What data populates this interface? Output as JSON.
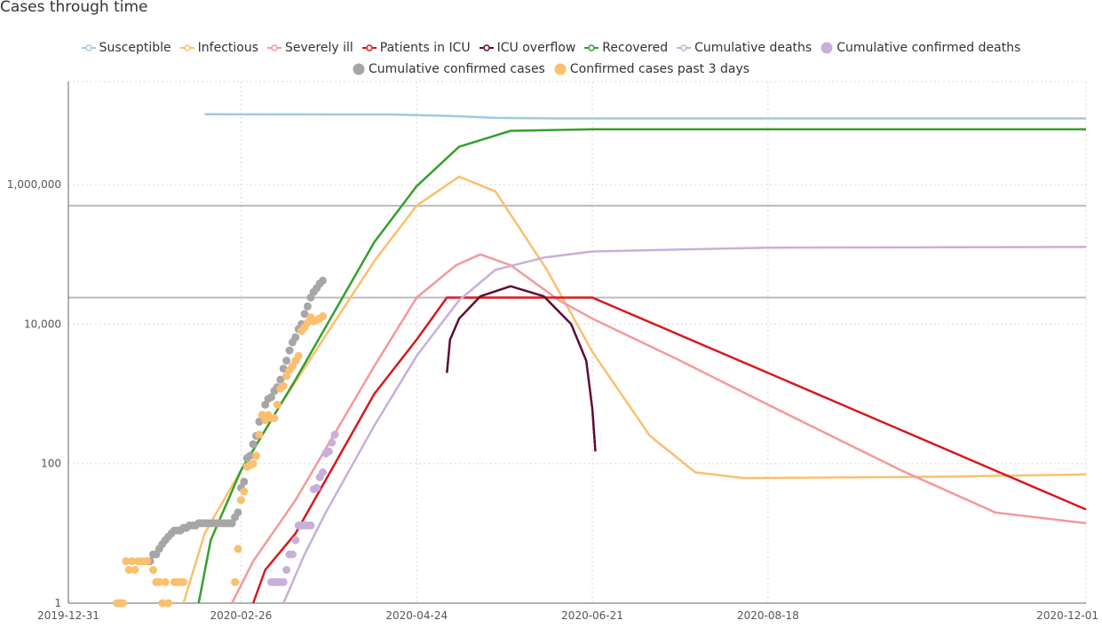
{
  "chart_data": {
    "type": "line",
    "title": "Cases through time",
    "y_scale": "log",
    "ylim": [
      1,
      30000000
    ],
    "xlim": [
      "2019-12-31",
      "2020-12-01"
    ],
    "y_ticks": [
      {
        "value": 1,
        "label": "1"
      },
      {
        "value": 100,
        "label": "100"
      },
      {
        "value": 10000,
        "label": "10,000"
      },
      {
        "value": 1000000,
        "label": "1,000,000"
      }
    ],
    "x_ticks": [
      {
        "value": "2019-12-31",
        "label": "2019-12-31"
      },
      {
        "value": "2020-02-26",
        "label": "2020-02-26"
      },
      {
        "value": "2020-04-24",
        "label": "2020-04-24"
      },
      {
        "value": "2020-06-21",
        "label": "2020-06-21"
      },
      {
        "value": "2020-08-18",
        "label": "2020-08-18"
      },
      {
        "value": "2020-12-01",
        "label": "2020-12-01"
      }
    ],
    "grid": true,
    "legend_position": "top",
    "reference_lines": [
      {
        "value": 500000,
        "color": "#bbbbbb"
      },
      {
        "value": 24000,
        "color": "#bbbbbb"
      }
    ],
    "series": [
      {
        "name": "Susceptible",
        "kind": "line",
        "color": "#9ecae1",
        "points": [
          [
            "2020-02-14",
            10200000
          ],
          [
            "2020-04-15",
            10150000
          ],
          [
            "2020-05-04",
            9700000
          ],
          [
            "2020-05-20",
            9050000
          ],
          [
            "2020-06-10",
            8900000
          ],
          [
            "2020-12-01",
            8900000
          ]
        ]
      },
      {
        "name": "Infectious",
        "kind": "line",
        "color": "#fbbf6e",
        "points": [
          [
            "2020-02-07",
            1
          ],
          [
            "2020-02-14",
            10
          ],
          [
            "2020-02-26",
            80
          ],
          [
            "2020-03-10",
            700
          ],
          [
            "2020-04-10",
            80000
          ],
          [
            "2020-04-24",
            500000
          ],
          [
            "2020-05-08",
            1300000
          ],
          [
            "2020-05-20",
            800000
          ],
          [
            "2020-06-06",
            60000
          ],
          [
            "2020-06-21",
            4000
          ],
          [
            "2020-07-10",
            250
          ],
          [
            "2020-07-25",
            75
          ],
          [
            "2020-08-10",
            62
          ],
          [
            "2020-09-01",
            63
          ],
          [
            "2020-10-15",
            65
          ],
          [
            "2020-12-01",
            70
          ]
        ]
      },
      {
        "name": "Severely ill",
        "kind": "line",
        "color": "#f4999a",
        "points": [
          [
            "2020-02-23",
            1
          ],
          [
            "2020-03-01",
            4
          ],
          [
            "2020-03-15",
            30
          ],
          [
            "2020-04-10",
            2500
          ],
          [
            "2020-04-24",
            24000
          ],
          [
            "2020-05-07",
            70000
          ],
          [
            "2020-05-15",
            100000
          ],
          [
            "2020-05-25",
            70000
          ],
          [
            "2020-06-10",
            22000
          ],
          [
            "2020-06-21",
            12000
          ],
          [
            "2020-07-20",
            3000
          ],
          [
            "2020-08-18",
            700
          ],
          [
            "2020-10-01",
            80
          ],
          [
            "2020-11-01",
            20
          ],
          [
            "2020-12-01",
            14
          ]
        ]
      },
      {
        "name": "Patients in ICU",
        "kind": "line",
        "color": "#d7191c",
        "points": [
          [
            "2020-03-01",
            1
          ],
          [
            "2020-03-05",
            3
          ],
          [
            "2020-03-15",
            10
          ],
          [
            "2020-04-10",
            1000
          ],
          [
            "2020-04-24",
            6000
          ],
          [
            "2020-05-04",
            24000
          ],
          [
            "2020-06-21",
            24000
          ],
          [
            "2020-08-18",
            2000
          ],
          [
            "2020-12-01",
            22
          ]
        ]
      },
      {
        "name": "ICU overflow",
        "kind": "line",
        "color": "#5e0a35",
        "points": [
          [
            "2020-05-04",
            2000
          ],
          [
            "2020-05-05",
            6000
          ],
          [
            "2020-05-08",
            12000
          ],
          [
            "2020-05-15",
            25000
          ],
          [
            "2020-05-25",
            35000
          ],
          [
            "2020-06-05",
            25000
          ],
          [
            "2020-06-14",
            10000
          ],
          [
            "2020-06-19",
            3000
          ],
          [
            "2020-06-21",
            600
          ],
          [
            "2020-06-22",
            150
          ]
        ]
      },
      {
        "name": "Recovered",
        "kind": "line",
        "color": "#33a02c",
        "points": [
          [
            "2020-02-12",
            1
          ],
          [
            "2020-02-16",
            8
          ],
          [
            "2020-02-26",
            80
          ],
          [
            "2020-03-15",
            1600
          ],
          [
            "2020-04-10",
            150000
          ],
          [
            "2020-04-24",
            950000
          ],
          [
            "2020-05-08",
            3500000
          ],
          [
            "2020-05-25",
            5900000
          ],
          [
            "2020-06-21",
            6200000
          ],
          [
            "2020-12-01",
            6200000
          ]
        ]
      },
      {
        "name": "Cumulative deaths",
        "kind": "line",
        "color": "#c8afd9",
        "points": [
          [
            "2020-03-11",
            1
          ],
          [
            "2020-03-18",
            5
          ],
          [
            "2020-03-25",
            20
          ],
          [
            "2020-04-10",
            350
          ],
          [
            "2020-04-24",
            3500
          ],
          [
            "2020-05-08",
            22000
          ],
          [
            "2020-05-20",
            60000
          ],
          [
            "2020-06-05",
            90000
          ],
          [
            "2020-06-21",
            110000
          ],
          [
            "2020-08-18",
            125000
          ],
          [
            "2020-12-01",
            128000
          ]
        ]
      },
      {
        "name": "Cumulative confirmed deaths",
        "kind": "points",
        "color": "#c8afd9",
        "points": [
          [
            "2020-03-07",
            2
          ],
          [
            "2020-03-08",
            2
          ],
          [
            "2020-03-09",
            2
          ],
          [
            "2020-03-10",
            2
          ],
          [
            "2020-03-11",
            2
          ],
          [
            "2020-03-12",
            3
          ],
          [
            "2020-03-13",
            5
          ],
          [
            "2020-03-14",
            5
          ],
          [
            "2020-03-15",
            8
          ],
          [
            "2020-03-16",
            13
          ],
          [
            "2020-03-17",
            13
          ],
          [
            "2020-03-18",
            13
          ],
          [
            "2020-03-19",
            13
          ],
          [
            "2020-03-20",
            13
          ],
          [
            "2020-03-21",
            43
          ],
          [
            "2020-03-22",
            45
          ],
          [
            "2020-03-23",
            64
          ],
          [
            "2020-03-24",
            75
          ],
          [
            "2020-03-25",
            140
          ],
          [
            "2020-03-26",
            150
          ],
          [
            "2020-03-27",
            200
          ],
          [
            "2020-03-28",
            260
          ]
        ]
      },
      {
        "name": "Cumulative confirmed cases",
        "kind": "points",
        "color": "#a6a6a6",
        "points": [
          [
            "2020-01-27",
            4
          ],
          [
            "2020-01-28",
            5
          ],
          [
            "2020-01-29",
            5
          ],
          [
            "2020-01-30",
            6
          ],
          [
            "2020-01-31",
            7
          ],
          [
            "2020-02-01",
            8
          ],
          [
            "2020-02-02",
            9
          ],
          [
            "2020-02-03",
            10
          ],
          [
            "2020-02-04",
            11
          ],
          [
            "2020-02-05",
            11
          ],
          [
            "2020-02-06",
            11
          ],
          [
            "2020-02-07",
            12
          ],
          [
            "2020-02-08",
            12
          ],
          [
            "2020-02-09",
            13
          ],
          [
            "2020-02-10",
            13
          ],
          [
            "2020-02-11",
            13
          ],
          [
            "2020-02-12",
            14
          ],
          [
            "2020-02-13",
            14
          ],
          [
            "2020-02-14",
            14
          ],
          [
            "2020-02-15",
            14
          ],
          [
            "2020-02-16",
            14
          ],
          [
            "2020-02-17",
            14
          ],
          [
            "2020-02-18",
            14
          ],
          [
            "2020-02-19",
            14
          ],
          [
            "2020-02-20",
            14
          ],
          [
            "2020-02-21",
            14
          ],
          [
            "2020-02-22",
            14
          ],
          [
            "2020-02-23",
            14
          ],
          [
            "2020-02-24",
            17
          ],
          [
            "2020-02-25",
            20
          ],
          [
            "2020-02-26",
            45
          ],
          [
            "2020-02-27",
            55
          ],
          [
            "2020-02-28",
            120
          ],
          [
            "2020-02-29",
            130
          ],
          [
            "2020-03-01",
            190
          ],
          [
            "2020-03-02",
            250
          ],
          [
            "2020-03-03",
            400
          ],
          [
            "2020-03-04",
            500
          ],
          [
            "2020-03-05",
            700
          ],
          [
            "2020-03-06",
            850
          ],
          [
            "2020-03-07",
            900
          ],
          [
            "2020-03-08",
            1100
          ],
          [
            "2020-03-09",
            1250
          ],
          [
            "2020-03-10",
            1600
          ],
          [
            "2020-03-11",
            2300
          ],
          [
            "2020-03-12",
            3000
          ],
          [
            "2020-03-13",
            4200
          ],
          [
            "2020-03-14",
            5500
          ],
          [
            "2020-03-15",
            6500
          ],
          [
            "2020-03-16",
            8500
          ],
          [
            "2020-03-17",
            10000
          ],
          [
            "2020-03-18",
            14000
          ],
          [
            "2020-03-19",
            18000
          ],
          [
            "2020-03-20",
            24000
          ],
          [
            "2020-03-21",
            29000
          ],
          [
            "2020-03-22",
            33000
          ],
          [
            "2020-03-23",
            38000
          ],
          [
            "2020-03-24",
            42000
          ]
        ]
      },
      {
        "name": "Confirmed cases past 3 days",
        "kind": "points",
        "color": "#fbbf6e",
        "points": [
          [
            "2020-01-16",
            1
          ],
          [
            "2020-01-17",
            1
          ],
          [
            "2020-01-18",
            1
          ],
          [
            "2020-01-19",
            4
          ],
          [
            "2020-01-20",
            3
          ],
          [
            "2020-01-21",
            4
          ],
          [
            "2020-01-22",
            3
          ],
          [
            "2020-01-23",
            4
          ],
          [
            "2020-01-24",
            4
          ],
          [
            "2020-01-25",
            4
          ],
          [
            "2020-01-26",
            4
          ],
          [
            "2020-01-28",
            3
          ],
          [
            "2020-01-29",
            2
          ],
          [
            "2020-01-30",
            2
          ],
          [
            "2020-01-31",
            1
          ],
          [
            "2020-02-01",
            2
          ],
          [
            "2020-02-02",
            1
          ],
          [
            "2020-02-04",
            2
          ],
          [
            "2020-02-05",
            2
          ],
          [
            "2020-02-06",
            2
          ],
          [
            "2020-02-07",
            2
          ],
          [
            "2020-02-24",
            2
          ],
          [
            "2020-02-25",
            6
          ],
          [
            "2020-02-26",
            30
          ],
          [
            "2020-02-27",
            40
          ],
          [
            "2020-02-28",
            90
          ],
          [
            "2020-02-29",
            95
          ],
          [
            "2020-03-01",
            100
          ],
          [
            "2020-03-02",
            130
          ],
          [
            "2020-03-03",
            260
          ],
          [
            "2020-03-04",
            500
          ],
          [
            "2020-03-05",
            420
          ],
          [
            "2020-03-06",
            500
          ],
          [
            "2020-03-07",
            450
          ],
          [
            "2020-03-08",
            450
          ],
          [
            "2020-03-09",
            700
          ],
          [
            "2020-03-10",
            1200
          ],
          [
            "2020-03-11",
            1300
          ],
          [
            "2020-03-12",
            1800
          ],
          [
            "2020-03-13",
            2200
          ],
          [
            "2020-03-14",
            2500
          ],
          [
            "2020-03-15",
            3000
          ],
          [
            "2020-03-16",
            3500
          ],
          [
            "2020-03-17",
            8000
          ],
          [
            "2020-03-18",
            9000
          ],
          [
            "2020-03-19",
            10500
          ],
          [
            "2020-03-20",
            12500
          ],
          [
            "2020-03-21",
            11000
          ],
          [
            "2020-03-22",
            11500
          ],
          [
            "2020-03-23",
            12000
          ],
          [
            "2020-03-24",
            13000
          ]
        ]
      }
    ]
  }
}
